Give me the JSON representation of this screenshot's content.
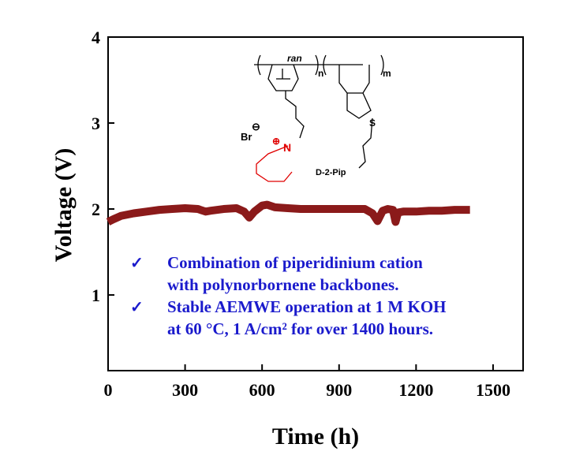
{
  "chart_data": {
    "type": "line",
    "x_label": "Time (h)",
    "y_label": "Voltage (V)",
    "xlim": [
      0,
      1617
    ],
    "ylim": [
      0.12,
      4
    ],
    "xticks": [
      0,
      300,
      600,
      900,
      1200,
      1500
    ],
    "yticks": [
      1,
      2,
      3,
      4
    ],
    "series": [
      {
        "color": "#8b1a1a",
        "x": [
          0,
          20,
          50,
          100,
          150,
          200,
          250,
          300,
          350,
          380,
          400,
          450,
          500,
          530,
          550,
          570,
          600,
          620,
          650,
          700,
          750,
          800,
          850,
          900,
          950,
          1000,
          1030,
          1050,
          1070,
          1090,
          1110,
          1120,
          1130,
          1150,
          1200,
          1250,
          1300,
          1350,
          1410
        ],
        "values": [
          1.85,
          1.88,
          1.92,
          1.95,
          1.97,
          1.99,
          2.0,
          2.01,
          2.0,
          1.97,
          1.98,
          2.0,
          2.01,
          1.97,
          1.9,
          1.97,
          2.04,
          2.05,
          2.02,
          2.01,
          2.0,
          2.0,
          2.0,
          2.0,
          2.0,
          2.0,
          1.95,
          1.86,
          1.98,
          2.0,
          1.99,
          1.85,
          1.96,
          1.97,
          1.97,
          1.98,
          1.98,
          1.99,
          1.99
        ]
      }
    ],
    "annotations": {
      "bullets": [
        {
          "mark": "✓",
          "lines": [
            "Combination of piperidinium cation",
            "with polynorbornene backbones."
          ]
        },
        {
          "mark": "✓",
          "lines": [
            "Stable AEMWE operation at 1 M KOH",
            "at 60 °C, 1 A/cm² for over 1400 hours."
          ]
        }
      ],
      "structure": {
        "n": "n",
        "ran": "ran",
        "m": "m",
        "anion": "Br",
        "charge_minus": "⊖",
        "nitrogen": "N",
        "charge_plus": "⊕",
        "sulfur": "S",
        "name": "D-2-Pip"
      }
    }
  }
}
